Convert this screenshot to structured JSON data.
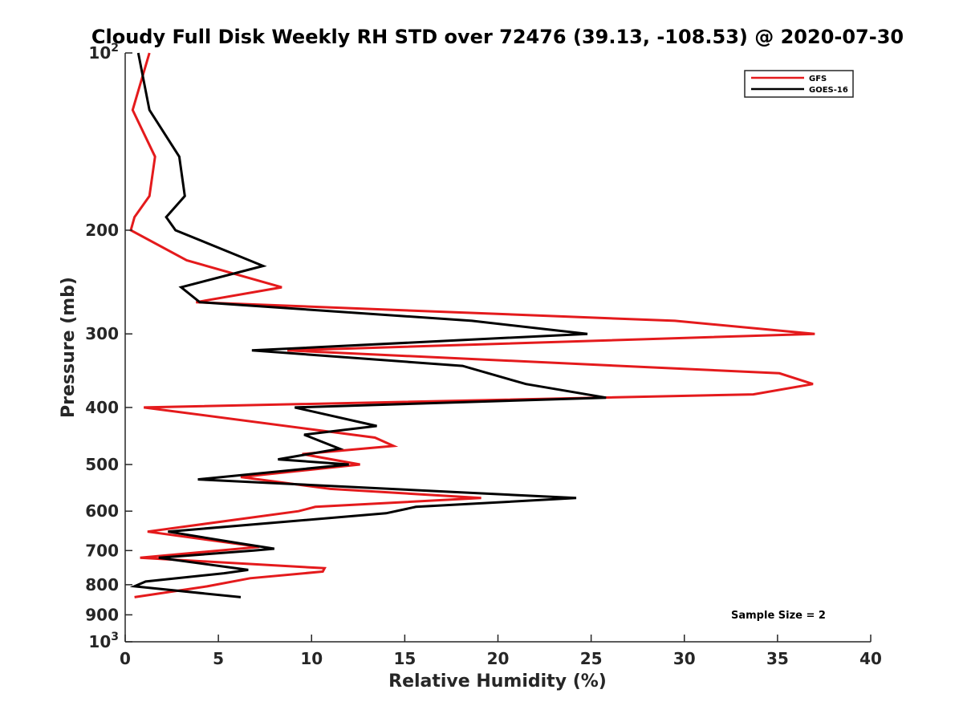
{
  "chart_data": {
    "type": "line",
    "title": "Cloudy Full Disk Weekly RH STD over 72476 (39.13, -108.53) @ 2020-07-30",
    "xlabel": "Relative Humidity (%)",
    "ylabel": "Pressure (mb)",
    "xlim": [
      0,
      40
    ],
    "ylim": [
      100,
      1000
    ],
    "yscale": "log",
    "y_reversed": true,
    "grid": false,
    "legend_position": "top-right",
    "x_ticks": [
      "0",
      "5",
      "10",
      "15",
      "20",
      "25",
      "30",
      "35",
      "40"
    ],
    "y_ticks": [
      {
        "value": 100,
        "base": "10",
        "exp": "2"
      },
      {
        "value": 200,
        "label": "200"
      },
      {
        "value": 300,
        "label": "300"
      },
      {
        "value": 400,
        "label": "400"
      },
      {
        "value": 500,
        "label": "500"
      },
      {
        "value": 600,
        "label": "600"
      },
      {
        "value": 700,
        "label": "700"
      },
      {
        "value": 800,
        "label": "800"
      },
      {
        "value": 900,
        "label": "900"
      },
      {
        "value": 1000,
        "base": "10",
        "exp": "3"
      }
    ],
    "series": [
      {
        "name": "GFS",
        "color": "#e41a1c",
        "points": [
          [
            1.3,
            100
          ],
          [
            0.4,
            125
          ],
          [
            1.6,
            150
          ],
          [
            1.3,
            175
          ],
          [
            0.5,
            190
          ],
          [
            0.3,
            200
          ],
          [
            3.3,
            225
          ],
          [
            8.4,
            250
          ],
          [
            3.8,
            265
          ],
          [
            29.5,
            285
          ],
          [
            37.0,
            300
          ],
          [
            8.7,
            320
          ],
          [
            35.1,
            350
          ],
          [
            36.9,
            365
          ],
          [
            33.7,
            380
          ],
          [
            1.0,
            400
          ],
          [
            13.4,
            450
          ],
          [
            14.4,
            465
          ],
          [
            9.5,
            480
          ],
          [
            12.6,
            500
          ],
          [
            6.2,
            525
          ],
          [
            11.0,
            550
          ],
          [
            19.1,
            570
          ],
          [
            10.2,
            590
          ],
          [
            9.3,
            600
          ],
          [
            1.2,
            650
          ],
          [
            7.2,
            690
          ],
          [
            0.8,
            720
          ],
          [
            10.7,
            750
          ],
          [
            10.6,
            760
          ],
          [
            6.7,
            780
          ],
          [
            4.4,
            805
          ],
          [
            0.5,
            840
          ]
        ]
      },
      {
        "name": "GOES-16",
        "color": "#000000",
        "points": [
          [
            0.7,
            100
          ],
          [
            1.3,
            125
          ],
          [
            2.9,
            150
          ],
          [
            3.2,
            175
          ],
          [
            2.2,
            190
          ],
          [
            2.7,
            200
          ],
          [
            7.4,
            230
          ],
          [
            3.0,
            250
          ],
          [
            4.0,
            265
          ],
          [
            18.6,
            285
          ],
          [
            24.8,
            300
          ],
          [
            6.8,
            320
          ],
          [
            18.1,
            340
          ],
          [
            21.5,
            365
          ],
          [
            25.8,
            385
          ],
          [
            9.1,
            400
          ],
          [
            13.5,
            430
          ],
          [
            9.6,
            445
          ],
          [
            11.5,
            470
          ],
          [
            8.2,
            490
          ],
          [
            12.0,
            500
          ],
          [
            3.9,
            530
          ],
          [
            24.2,
            570
          ],
          [
            15.6,
            590
          ],
          [
            14.0,
            605
          ],
          [
            2.3,
            650
          ],
          [
            6.1,
            680
          ],
          [
            8.0,
            695
          ],
          [
            6.9,
            700
          ],
          [
            1.8,
            720
          ],
          [
            6.6,
            755
          ],
          [
            5.3,
            765
          ],
          [
            1.1,
            790
          ],
          [
            0.5,
            805
          ],
          [
            6.2,
            840
          ]
        ]
      }
    ],
    "annotation": "Sample Size = 2"
  }
}
